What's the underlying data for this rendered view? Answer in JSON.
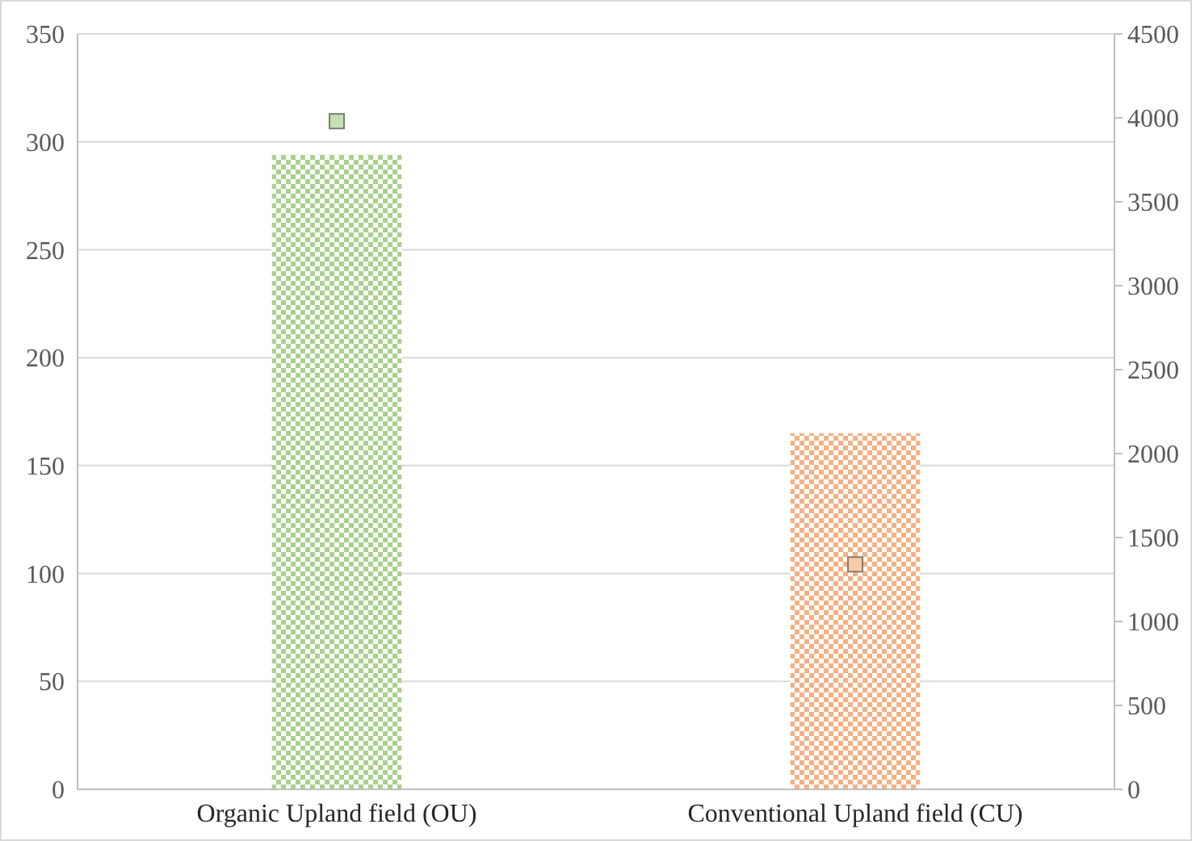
{
  "chart_data": {
    "type": "bar",
    "categories": [
      "Organic Upland field (OU)",
      "Conventional Upland field (CU)"
    ],
    "series": [
      {
        "colors": [
          "#a9d18e",
          "#f4b183"
        ],
        "values": [
          294,
          165
        ]
      },
      {
        "type": "scatter",
        "axis": "y2",
        "colors": [
          "#c5e0b4",
          "#f8cbad"
        ],
        "values": [
          3980,
          1340
        ]
      }
    ],
    "ylim": [
      0,
      350
    ],
    "yticks": [
      0,
      50,
      100,
      150,
      200,
      250,
      300,
      350
    ],
    "y2lim": [
      0,
      4500
    ],
    "y2ticks": [
      0,
      500,
      1000,
      1500,
      2000,
      2500,
      3000,
      3500,
      4000,
      4500
    ],
    "grid": "y",
    "marker": "square"
  }
}
